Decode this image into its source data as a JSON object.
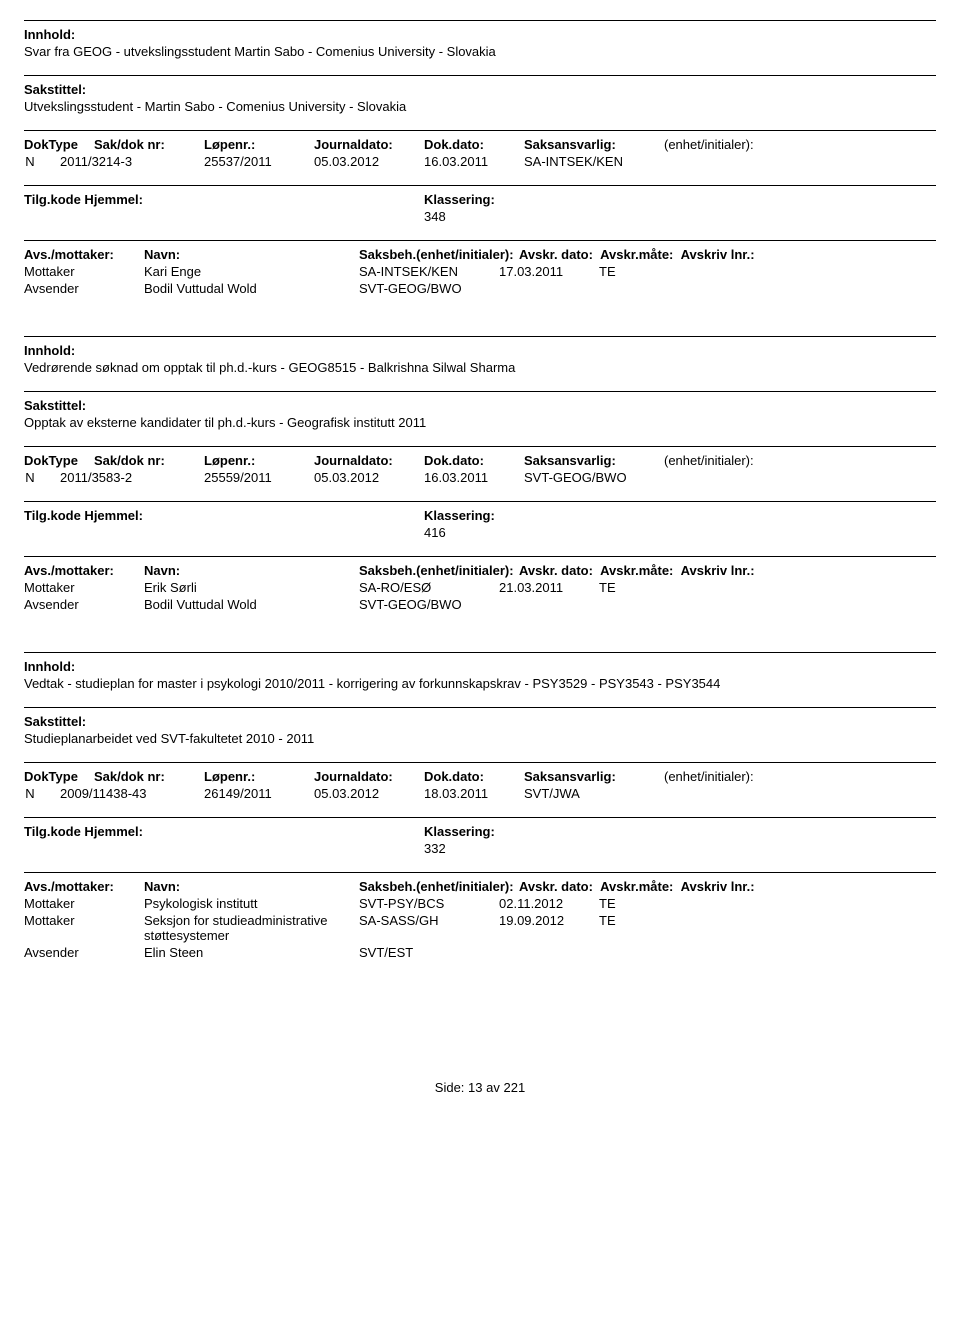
{
  "labels": {
    "innhold": "Innhold:",
    "sakstittel": "Sakstittel:",
    "doktype": "DokType",
    "sakdok": "Sak/dok nr:",
    "lopenr": "Løpenr.:",
    "journaldato": "Journaldato:",
    "dokdato": "Dok.dato:",
    "saksansvarlig": "Saksansvarlig:",
    "enhet": "(enhet/initialer):",
    "tilgkode": "Tilg.kode",
    "hjemmel": "Hjemmel:",
    "klassering": "Klassering:",
    "avsmottaker": "Avs./mottaker:",
    "navn": "Navn:",
    "saksbeh": "Saksbeh.(enhet/initialer):",
    "avskrdato": "Avskr. dato:",
    "avskrmate": "Avskr.måte:",
    "avskrivlnr": "Avskriv lnr.:",
    "mottaker": "Mottaker",
    "avsender": "Avsender",
    "side": "Side:",
    "av": "av"
  },
  "entries": [
    {
      "innhold": "Svar fra GEOG - utvekslingsstudent Martin Sabo - Comenius University - Slovakia",
      "sakstittel": "Utvekslingsstudent - Martin Sabo - Comenius University - Slovakia",
      "doktype": "N",
      "sakdok": "2011/3214-3",
      "lopenr": "25537/2011",
      "journaldato": "05.03.2012",
      "dokdato": "16.03.2011",
      "saksansvarlig": "SA-INTSEK/KEN",
      "klassering": "348",
      "parties": [
        {
          "role": "Mottaker",
          "navn": "Kari Enge",
          "saksbeh": "SA-INTSEK/KEN",
          "dato": "17.03.2011",
          "avskm": "TE"
        },
        {
          "role": "Avsender",
          "navn": "Bodil Vuttudal Wold",
          "saksbeh": "SVT-GEOG/BWO",
          "dato": "",
          "avskm": ""
        }
      ]
    },
    {
      "innhold": "Vedrørende søknad om opptak til ph.d.-kurs - GEOG8515 - Balkrishna Silwal Sharma",
      "sakstittel": "Opptak av eksterne kandidater til ph.d.-kurs - Geografisk institutt 2011",
      "doktype": "N",
      "sakdok": "2011/3583-2",
      "lopenr": "25559/2011",
      "journaldato": "05.03.2012",
      "dokdato": "16.03.2011",
      "saksansvarlig": "SVT-GEOG/BWO",
      "klassering": "416",
      "parties": [
        {
          "role": "Mottaker",
          "navn": "Erik Sørli",
          "saksbeh": "SA-RO/ESØ",
          "dato": "21.03.2011",
          "avskm": "TE"
        },
        {
          "role": "Avsender",
          "navn": "Bodil Vuttudal Wold",
          "saksbeh": "SVT-GEOG/BWO",
          "dato": "",
          "avskm": ""
        }
      ]
    },
    {
      "innhold": "Vedtak - studieplan for master i psykologi 2010/2011 - korrigering av forkunnskapskrav - PSY3529 - PSY3543 - PSY3544",
      "sakstittel": "Studieplanarbeidet ved SVT-fakultetet 2010 - 2011",
      "doktype": "N",
      "sakdok": "2009/11438-43",
      "lopenr": "26149/2011",
      "journaldato": "05.03.2012",
      "dokdato": "18.03.2011",
      "saksansvarlig": "SVT/JWA",
      "klassering": "332",
      "parties": [
        {
          "role": "Mottaker",
          "navn": "Psykologisk institutt",
          "saksbeh": "SVT-PSY/BCS",
          "dato": "02.11.2012",
          "avskm": "TE"
        },
        {
          "role": "Mottaker",
          "navn": "Seksjon for studieadministrative støttesystemer",
          "saksbeh": "SA-SASS/GH",
          "dato": "19.09.2012",
          "avskm": "TE"
        },
        {
          "role": "Avsender",
          "navn": "Elin Steen",
          "saksbeh": "SVT/EST",
          "dato": "",
          "avskm": ""
        }
      ]
    }
  ],
  "footer": {
    "page": "13",
    "total": "221"
  }
}
